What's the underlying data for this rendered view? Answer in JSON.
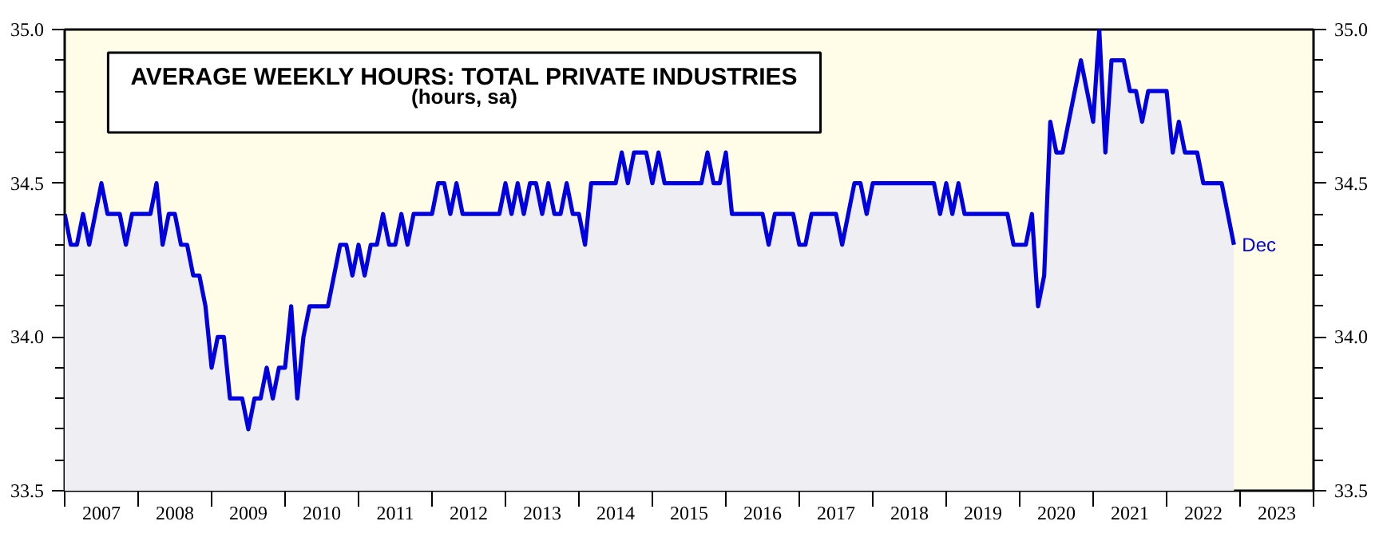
{
  "chart_data": {
    "type": "area",
    "title": "AVERAGE WEEKLY HOURS: TOTAL PRIVATE INDUSTRIES",
    "subtitle": "(hours, sa)",
    "x": [
      "2007-01",
      "2007-02",
      "2007-03",
      "2007-04",
      "2007-05",
      "2007-06",
      "2007-07",
      "2007-08",
      "2007-09",
      "2007-10",
      "2007-11",
      "2007-12",
      "2008-01",
      "2008-02",
      "2008-03",
      "2008-04",
      "2008-05",
      "2008-06",
      "2008-07",
      "2008-08",
      "2008-09",
      "2008-10",
      "2008-11",
      "2008-12",
      "2009-01",
      "2009-02",
      "2009-03",
      "2009-04",
      "2009-05",
      "2009-06",
      "2009-07",
      "2009-08",
      "2009-09",
      "2009-10",
      "2009-11",
      "2009-12",
      "2010-01",
      "2010-02",
      "2010-03",
      "2010-04",
      "2010-05",
      "2010-06",
      "2010-07",
      "2010-08",
      "2010-09",
      "2010-10",
      "2010-11",
      "2010-12",
      "2011-01",
      "2011-02",
      "2011-03",
      "2011-04",
      "2011-05",
      "2011-06",
      "2011-07",
      "2011-08",
      "2011-09",
      "2011-10",
      "2011-11",
      "2011-12",
      "2012-01",
      "2012-02",
      "2012-03",
      "2012-04",
      "2012-05",
      "2012-06",
      "2012-07",
      "2012-08",
      "2012-09",
      "2012-10",
      "2012-11",
      "2012-12",
      "2013-01",
      "2013-02",
      "2013-03",
      "2013-04",
      "2013-05",
      "2013-06",
      "2013-07",
      "2013-08",
      "2013-09",
      "2013-10",
      "2013-11",
      "2013-12",
      "2014-01",
      "2014-02",
      "2014-03",
      "2014-04",
      "2014-05",
      "2014-06",
      "2014-07",
      "2014-08",
      "2014-09",
      "2014-10",
      "2014-11",
      "2014-12",
      "2015-01",
      "2015-02",
      "2015-03",
      "2015-04",
      "2015-05",
      "2015-06",
      "2015-07",
      "2015-08",
      "2015-09",
      "2015-10",
      "2015-11",
      "2015-12",
      "2016-01",
      "2016-02",
      "2016-03",
      "2016-04",
      "2016-05",
      "2016-06",
      "2016-07",
      "2016-08",
      "2016-09",
      "2016-10",
      "2016-11",
      "2016-12",
      "2017-01",
      "2017-02",
      "2017-03",
      "2017-04",
      "2017-05",
      "2017-06",
      "2017-07",
      "2017-08",
      "2017-09",
      "2017-10",
      "2017-11",
      "2017-12",
      "2018-01",
      "2018-02",
      "2018-03",
      "2018-04",
      "2018-05",
      "2018-06",
      "2018-07",
      "2018-08",
      "2018-09",
      "2018-10",
      "2018-11",
      "2018-12",
      "2019-01",
      "2019-02",
      "2019-03",
      "2019-04",
      "2019-05",
      "2019-06",
      "2019-07",
      "2019-08",
      "2019-09",
      "2019-10",
      "2019-11",
      "2019-12",
      "2020-01",
      "2020-02",
      "2020-03",
      "2020-04",
      "2020-05",
      "2020-06",
      "2020-07",
      "2020-08",
      "2020-09",
      "2020-10",
      "2020-11",
      "2020-12",
      "2021-01",
      "2021-02",
      "2021-03",
      "2021-04",
      "2021-05",
      "2021-06",
      "2021-07",
      "2021-08",
      "2021-09",
      "2021-10",
      "2021-11",
      "2021-12",
      "2022-01",
      "2022-02",
      "2022-03",
      "2022-04",
      "2022-05",
      "2022-06",
      "2022-07",
      "2022-08",
      "2022-09",
      "2022-10",
      "2022-11",
      "2022-12"
    ],
    "series": [
      {
        "color": "#0000e0",
        "values": [
          34.4,
          34.3,
          34.3,
          34.4,
          34.3,
          34.4,
          34.5,
          34.4,
          34.4,
          34.4,
          34.3,
          34.4,
          34.4,
          34.4,
          34.4,
          34.5,
          34.3,
          34.4,
          34.4,
          34.3,
          34.3,
          34.2,
          34.2,
          34.1,
          33.9,
          34.0,
          34.0,
          33.8,
          33.8,
          33.8,
          33.7,
          33.8,
          33.8,
          33.9,
          33.8,
          33.9,
          33.9,
          34.1,
          33.8,
          34.0,
          34.1,
          34.1,
          34.1,
          34.1,
          34.2,
          34.3,
          34.3,
          34.2,
          34.3,
          34.2,
          34.3,
          34.3,
          34.4,
          34.3,
          34.3,
          34.4,
          34.3,
          34.4,
          34.4,
          34.4,
          34.4,
          34.5,
          34.5,
          34.4,
          34.5,
          34.4,
          34.4,
          34.4,
          34.4,
          34.4,
          34.4,
          34.4,
          34.5,
          34.4,
          34.5,
          34.4,
          34.5,
          34.5,
          34.4,
          34.5,
          34.4,
          34.4,
          34.5,
          34.4,
          34.4,
          34.3,
          34.5,
          34.5,
          34.5,
          34.5,
          34.5,
          34.6,
          34.5,
          34.6,
          34.6,
          34.6,
          34.5,
          34.6,
          34.5,
          34.5,
          34.5,
          34.5,
          34.5,
          34.5,
          34.5,
          34.6,
          34.5,
          34.5,
          34.6,
          34.4,
          34.4,
          34.4,
          34.4,
          34.4,
          34.4,
          34.3,
          34.4,
          34.4,
          34.4,
          34.4,
          34.3,
          34.3,
          34.4,
          34.4,
          34.4,
          34.4,
          34.4,
          34.3,
          34.4,
          34.5,
          34.5,
          34.4,
          34.5,
          34.5,
          34.5,
          34.5,
          34.5,
          34.5,
          34.5,
          34.5,
          34.5,
          34.5,
          34.5,
          34.4,
          34.5,
          34.4,
          34.5,
          34.4,
          34.4,
          34.4,
          34.4,
          34.4,
          34.4,
          34.4,
          34.4,
          34.3,
          34.3,
          34.3,
          34.4,
          34.1,
          34.2,
          34.7,
          34.6,
          34.6,
          34.7,
          34.8,
          34.9,
          34.8,
          34.7,
          35.0,
          34.6,
          34.9,
          34.9,
          34.9,
          34.8,
          34.8,
          34.7,
          34.8,
          34.8,
          34.8,
          34.8,
          34.6,
          34.7,
          34.6,
          34.6,
          34.6,
          34.5,
          34.5,
          34.5,
          34.5,
          34.4,
          34.3
        ]
      }
    ],
    "annotations": [
      {
        "text": "Dec",
        "x": "2022-12",
        "y": 34.3
      }
    ],
    "xlim": [
      "2007",
      "2024"
    ],
    "xticks": [
      {
        "value": "2007",
        "label": null
      },
      {
        "value": "2007-07",
        "label": "2007"
      },
      {
        "value": "2008",
        "label": null
      },
      {
        "value": "2008-07",
        "label": "2008"
      },
      {
        "value": "2009",
        "label": null
      },
      {
        "value": "2009-07",
        "label": "2009"
      },
      {
        "value": "2010",
        "label": null
      },
      {
        "value": "2010-07",
        "label": "2010"
      },
      {
        "value": "2011",
        "label": null
      },
      {
        "value": "2011-07",
        "label": "2011"
      },
      {
        "value": "2012",
        "label": null
      },
      {
        "value": "2012-07",
        "label": "2012"
      },
      {
        "value": "2013",
        "label": null
      },
      {
        "value": "2013-07",
        "label": "2013"
      },
      {
        "value": "2014",
        "label": null
      },
      {
        "value": "2014-07",
        "label": "2014"
      },
      {
        "value": "2015",
        "label": null
      },
      {
        "value": "2015-07",
        "label": "2015"
      },
      {
        "value": "2016",
        "label": null
      },
      {
        "value": "2016-07",
        "label": "2016"
      },
      {
        "value": "2017",
        "label": null
      },
      {
        "value": "2017-07",
        "label": "2017"
      },
      {
        "value": "2018",
        "label": null
      },
      {
        "value": "2018-07",
        "label": "2018"
      },
      {
        "value": "2019",
        "label": null
      },
      {
        "value": "2019-07",
        "label": "2019"
      },
      {
        "value": "2020",
        "label": null
      },
      {
        "value": "2020-07",
        "label": "2020"
      },
      {
        "value": "2021",
        "label": null
      },
      {
        "value": "2021-07",
        "label": "2021"
      },
      {
        "value": "2022",
        "label": null
      },
      {
        "value": "2022-07",
        "label": "2022"
      },
      {
        "value": "2023",
        "label": null
      },
      {
        "value": "2023-07",
        "label": "2023"
      },
      {
        "value": "2024",
        "label": null
      }
    ],
    "ylim": [
      33.5,
      35.0
    ],
    "yticks": [
      {
        "value": 33.5,
        "label": "33.5"
      },
      {
        "value": 33.6,
        "label": null
      },
      {
        "value": 33.7,
        "label": null
      },
      {
        "value": 33.8,
        "label": null
      },
      {
        "value": 33.9,
        "label": null
      },
      {
        "value": 34.0,
        "label": "34.0"
      },
      {
        "value": 34.1,
        "label": null
      },
      {
        "value": 34.2,
        "label": null
      },
      {
        "value": 34.3,
        "label": null
      },
      {
        "value": 34.4,
        "label": null
      },
      {
        "value": 34.5,
        "label": "34.5"
      },
      {
        "value": 34.6,
        "label": null
      },
      {
        "value": 34.7,
        "label": null
      },
      {
        "value": 34.8,
        "label": null
      },
      {
        "value": 34.9,
        "label": null
      },
      {
        "value": 35.0,
        "label": "35.0"
      }
    ],
    "y2lim": [
      33.5,
      35.0
    ],
    "y2ticks": [
      {
        "value": 33.5,
        "label": "33.5"
      },
      {
        "value": 33.6,
        "label": null
      },
      {
        "value": 33.7,
        "label": null
      },
      {
        "value": 33.8,
        "label": null
      },
      {
        "value": 33.9,
        "label": null
      },
      {
        "value": 34.0,
        "label": "34.0"
      },
      {
        "value": 34.1,
        "label": null
      },
      {
        "value": 34.2,
        "label": null
      },
      {
        "value": 34.3,
        "label": null
      },
      {
        "value": 34.4,
        "label": null
      },
      {
        "value": 34.5,
        "label": "34.5"
      },
      {
        "value": 34.6,
        "label": null
      },
      {
        "value": 34.7,
        "label": null
      },
      {
        "value": 34.8,
        "label": null
      },
      {
        "value": 34.9,
        "label": null
      },
      {
        "value": 35.0,
        "label": "35.0"
      }
    ],
    "grid": false
  }
}
